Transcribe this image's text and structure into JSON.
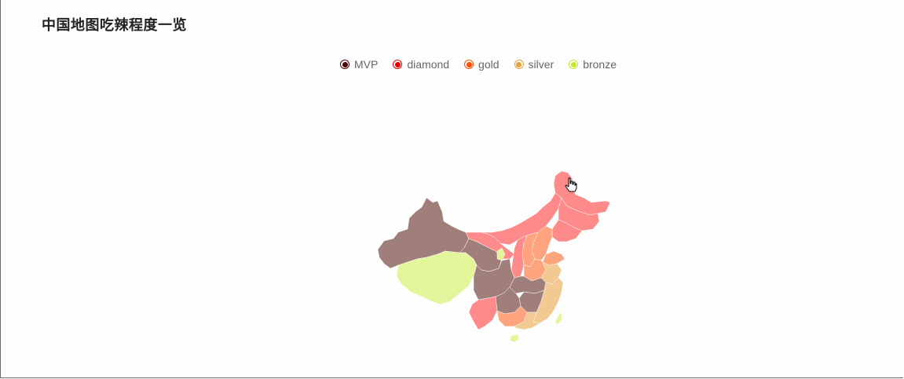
{
  "title": "中国地图吃辣程度一览",
  "legend": [
    {
      "label": "MVP",
      "color": "#4a0000"
    },
    {
      "label": "diamond",
      "color": "#e80000"
    },
    {
      "label": "gold",
      "color": "#ff4d00"
    },
    {
      "label": "silver",
      "color": "#e8a23c"
    },
    {
      "label": "bronze",
      "color": "#c8e830"
    }
  ],
  "region_colors": {
    "mvp_region": "#a07f7b",
    "diamond_region": "#ff8a8a",
    "gold_region": "#ffa47c",
    "silver_region": "#f2c990",
    "bronze_region": "#e2f59a"
  }
}
